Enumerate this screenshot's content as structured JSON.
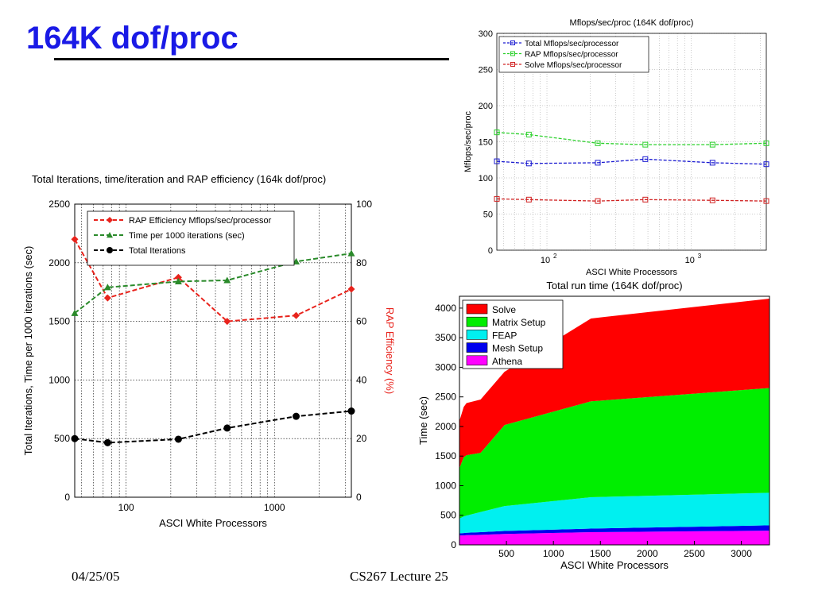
{
  "slide": {
    "title": "164K dof/proc",
    "footer_date": "04/25/05",
    "footer_course": "CS267 Lecture 25"
  },
  "chart_data": [
    {
      "id": "left",
      "type": "line",
      "title": "Total Iterations, time/iteration and RAP efficiency (164k dof/proc)",
      "xlabel": "ASCI White Processors",
      "ylabel": "Total Iterations, Time per 1000 iterations (sec)",
      "ylabel_right": "RAP Efficiency (%)",
      "x_scale": "log",
      "xlim": [
        45,
        3300
      ],
      "x_ticks": [
        {
          "value": 100,
          "label": "100"
        },
        {
          "value": 1000,
          "label": "1000"
        }
      ],
      "ylim": [
        0,
        2500
      ],
      "y_ticks": [
        0,
        500,
        1000,
        1500,
        2000,
        2500
      ],
      "ylim_right": [
        0,
        100
      ],
      "y_ticks_right": [
        0,
        20,
        40,
        60,
        80,
        100
      ],
      "grid": true,
      "legend_position": "top-left",
      "series": [
        {
          "name": "RAP Efficiency Mflops/sec/processor",
          "axis": "right",
          "color": "#e8231c",
          "marker": "diamond",
          "x": [
            45,
            75,
            225,
            480,
            1400,
            3300
          ],
          "y": [
            88,
            68,
            75,
            60,
            62,
            71
          ]
        },
        {
          "name": "Time per 1000 iterations (sec)",
          "axis": "left",
          "color": "#2a8a2a",
          "marker": "triangle",
          "x": [
            45,
            75,
            225,
            480,
            1400,
            3300
          ],
          "y": [
            1570,
            1790,
            1840,
            1850,
            2010,
            2080
          ]
        },
        {
          "name": "Total Iterations",
          "axis": "left",
          "color": "#000000",
          "marker": "circle",
          "x": [
            45,
            75,
            225,
            480,
            1400,
            3300
          ],
          "y": [
            500,
            465,
            495,
            590,
            690,
            735
          ]
        }
      ]
    },
    {
      "id": "top-right",
      "type": "line",
      "title": "Mflops/sec/proc (164K dof/proc)",
      "xlabel": "ASCI White Processors",
      "ylabel": "Mflops/sec/proc",
      "x_scale": "log",
      "xlim": [
        45,
        3300
      ],
      "x_ticks": [
        {
          "value": 100,
          "label": "10",
          "exp": "2"
        },
        {
          "value": 1000,
          "label": "10",
          "exp": "3"
        }
      ],
      "ylim": [
        0,
        300
      ],
      "y_ticks": [
        0,
        50,
        100,
        150,
        200,
        250,
        300
      ],
      "grid": true,
      "legend_position": "top-left",
      "series": [
        {
          "name": "Total Mflops/sec/processor",
          "color": "#1a1ad0",
          "marker": "square",
          "x": [
            45,
            75,
            225,
            480,
            1400,
            3300
          ],
          "y": [
            123,
            120,
            121,
            126,
            121,
            119
          ]
        },
        {
          "name": "RAP Mflops/sec/processor",
          "color": "#2ad02a",
          "marker": "square",
          "x": [
            45,
            75,
            225,
            480,
            1400,
            3300
          ],
          "y": [
            163,
            160,
            148,
            146,
            146,
            148
          ]
        },
        {
          "name": "Solve Mflops/sec/processor",
          "color": "#d02020",
          "marker": "square",
          "x": [
            45,
            75,
            225,
            480,
            1400,
            3300
          ],
          "y": [
            71,
            70,
            68,
            70,
            69,
            68
          ]
        }
      ]
    },
    {
      "id": "bottom-right",
      "type": "area",
      "title": "Total run time (164K dof/proc)",
      "xlabel": "ASCI White Processors",
      "ylabel": "Time (sec)",
      "xlim": [
        0,
        3300
      ],
      "x_ticks": [
        500,
        1000,
        1500,
        2000,
        2500,
        3000
      ],
      "ylim": [
        0,
        4200
      ],
      "y_ticks": [
        0,
        500,
        1000,
        1500,
        2000,
        2500,
        3000,
        3500,
        4000
      ],
      "grid": false,
      "legend_position": "top-left",
      "stacked": true,
      "x": [
        0,
        45,
        75,
        225,
        480,
        1400,
        3300
      ],
      "series": [
        {
          "name": "Athena",
          "color": "#ff00ff",
          "values": [
            160,
            160,
            165,
            170,
            185,
            215,
            240
          ]
        },
        {
          "name": "Mesh Setup",
          "color": "#0000ee",
          "values": [
            35,
            40,
            40,
            45,
            50,
            60,
            90
          ]
        },
        {
          "name": "FEAP",
          "color": "#00f0f0",
          "values": [
            250,
            280,
            290,
            340,
            420,
            530,
            550
          ]
        },
        {
          "name": "Matrix Setup",
          "color": "#00ee00",
          "values": [
            850,
            1000,
            1020,
            1000,
            1370,
            1620,
            1770
          ]
        },
        {
          "name": "Solve",
          "color": "#ff0000",
          "values": [
            800,
            850,
            880,
            900,
            900,
            1400,
            1510
          ]
        }
      ]
    }
  ]
}
